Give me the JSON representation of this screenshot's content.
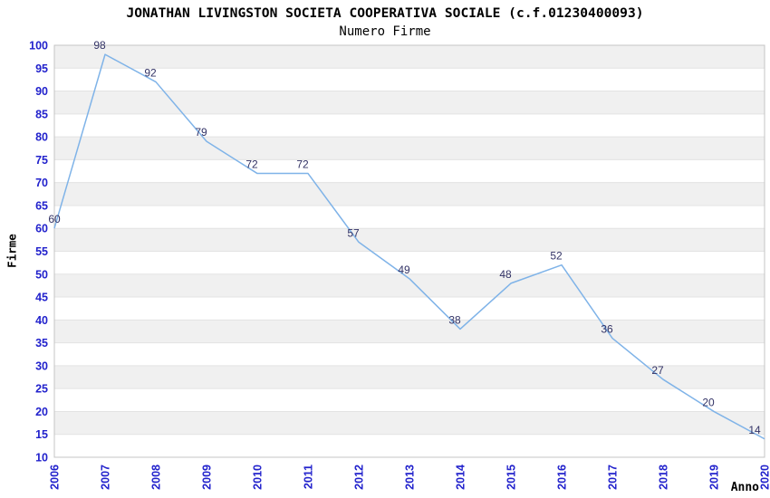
{
  "header": {
    "title": "JONATHAN LIVINGSTON SOCIETA COOPERATIVA SOCIALE (c.f.01230400093)",
    "subtitle": "Numero Firme"
  },
  "chart_data": {
    "type": "line",
    "title": "JONATHAN LIVINGSTON SOCIETA COOPERATIVA SOCIALE (c.f.01230400093)",
    "subtitle": "Numero Firme",
    "xlabel": "Anno",
    "ylabel": "Firme",
    "categories": [
      "2006",
      "2007",
      "2008",
      "2009",
      "2010",
      "2011",
      "2012",
      "2013",
      "2014",
      "2015",
      "2016",
      "2017",
      "2018",
      "2019",
      "2020"
    ],
    "values": [
      60,
      98,
      92,
      79,
      72,
      72,
      57,
      49,
      38,
      48,
      52,
      36,
      27,
      20,
      14
    ],
    "data_labels_visible": true,
    "ylim": [
      10,
      100
    ],
    "y_tick_step": 5,
    "y_ticks": [
      10,
      15,
      20,
      25,
      30,
      35,
      40,
      45,
      50,
      55,
      60,
      65,
      70,
      75,
      80,
      85,
      90,
      95,
      100
    ],
    "grid": "alternating-horizontal-bands",
    "legend_position": "none",
    "colors": {
      "line": "#7fb3e8",
      "tick_label": "#2222cc",
      "data_label": "#333366",
      "band": "#f0f0f0",
      "band_edge": "#e3e3e3",
      "plot_border": "#c4c4c4",
      "title_text": "#000000"
    }
  }
}
